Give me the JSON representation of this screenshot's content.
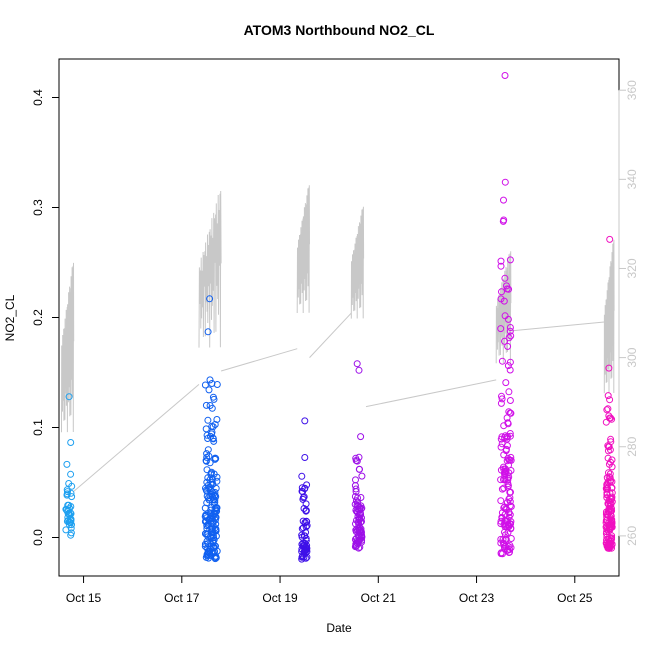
{
  "chart_data": {
    "type": "scatter",
    "title": "ATOM3 Northbound NO2_CL",
    "xlabel": "Date",
    "ylabel": "NO2_CL",
    "x_tick_labels": [
      "Oct 15",
      "Oct 17",
      "Oct 19",
      "Oct 21",
      "Oct 23",
      "Oct 25"
    ],
    "y_ticks": [
      "0.0",
      "0.1",
      "0.2",
      "0.3",
      "0.4"
    ],
    "y2_ticks": [
      "260",
      "280",
      "300",
      "320",
      "340",
      "360"
    ],
    "xlim_days": [
      14.5,
      25.9
    ],
    "ylim": [
      -0.035,
      0.435
    ],
    "y2lim": [
      251,
      367
    ],
    "colors": {
      "axis": "#000000",
      "secondary": "#c8c8c8",
      "line": "#c8c8c8"
    },
    "legend": "none",
    "grid": false,
    "clusters": [
      {
        "day": 14.7,
        "spread": 0.12,
        "n": 40,
        "min": 0.0,
        "max": 0.11,
        "outliers": [
          0.128
        ],
        "color": "#1ea0f0"
      },
      {
        "day": 17.6,
        "spread": 0.25,
        "n": 170,
        "min": -0.02,
        "max": 0.16,
        "outliers": [
          0.187,
          0.217,
          0.14
        ],
        "color": "#1060f0"
      },
      {
        "day": 19.5,
        "spread": 0.12,
        "n": 60,
        "min": -0.02,
        "max": 0.09,
        "outliers": [
          0.106
        ],
        "color": "#3e10e8"
      },
      {
        "day": 20.6,
        "spread": 0.14,
        "n": 80,
        "min": -0.01,
        "max": 0.1,
        "outliers": [
          0.158,
          0.152
        ],
        "color": "#9d10e8"
      },
      {
        "day": 23.6,
        "spread": 0.22,
        "n": 150,
        "min": -0.015,
        "max": 0.32,
        "outliers": [
          0.42,
          0.323
        ],
        "color": "#d010e8"
      },
      {
        "day": 25.7,
        "spread": 0.13,
        "n": 130,
        "min": -0.01,
        "max": 0.15,
        "outliers": [
          0.271,
          0.154,
          0.129
        ],
        "color": "#f010c0"
      }
    ],
    "secondary_series": {
      "axis": "right",
      "segments": [
        {
          "start": 14.55,
          "end": 14.8,
          "min": 270,
          "max": 323
        },
        {
          "start": 17.35,
          "end": 17.8,
          "min": 290,
          "max": 339
        },
        {
          "start": 19.35,
          "end": 19.6,
          "min": 300,
          "max": 340
        },
        {
          "start": 20.45,
          "end": 20.7,
          "min": 300,
          "max": 335
        },
        {
          "start": 23.4,
          "end": 23.7,
          "min": 290,
          "max": 325
        },
        {
          "start": 25.6,
          "end": 25.8,
          "min": 280,
          "max": 328
        }
      ],
      "connectors": [
        [
          14.8,
          270,
          17.35,
          294
        ],
        [
          17.8,
          297,
          19.35,
          302
        ],
        [
          19.6,
          300,
          20.45,
          310
        ],
        [
          20.75,
          289,
          23.4,
          295
        ],
        [
          23.7,
          306,
          25.6,
          308
        ]
      ]
    }
  }
}
